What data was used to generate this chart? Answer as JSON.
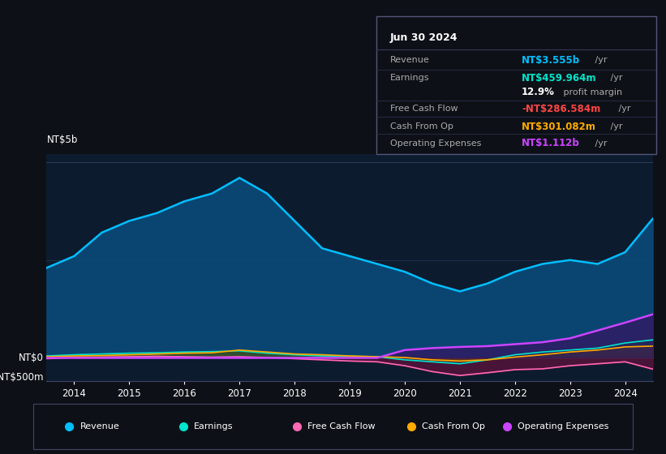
{
  "bg_color": "#0d1117",
  "chart_bg": "#0d1b2e",
  "title_box": {
    "date": "Jun 30 2024",
    "rows": [
      {
        "label": "Revenue",
        "value": "NT$3.555b",
        "suffix": " /yr",
        "value_color": "#00bfff"
      },
      {
        "label": "Earnings",
        "value": "NT$459.964m",
        "suffix": " /yr",
        "value_color": "#00e5cc"
      },
      {
        "label": "",
        "value": "12.9%",
        "suffix": " profit margin",
        "value_color": "#ffffff"
      },
      {
        "label": "Free Cash Flow",
        "value": "-NT$286.584m",
        "suffix": " /yr",
        "value_color": "#ff4444"
      },
      {
        "label": "Cash From Op",
        "value": "NT$301.082m",
        "suffix": " /yr",
        "value_color": "#ffaa00"
      },
      {
        "label": "Operating Expenses",
        "value": "NT$1.112b",
        "suffix": " /yr",
        "value_color": "#cc44ff"
      }
    ]
  },
  "ylabel_top": "NT$5b",
  "ylabel_zero": "NT$0",
  "ylabel_neg": "-NT$500m",
  "ylim": [
    -600,
    5200
  ],
  "years_x": [
    2013.5,
    2014,
    2014.5,
    2015,
    2015.5,
    2016,
    2016.5,
    2017,
    2017.5,
    2018,
    2018.5,
    2019,
    2019.5,
    2020,
    2020.5,
    2021,
    2021.5,
    2022,
    2022.5,
    2023,
    2023.5,
    2024,
    2024.5
  ],
  "revenue": [
    2300,
    2600,
    3200,
    3500,
    3700,
    4000,
    4200,
    4600,
    4200,
    3500,
    2800,
    2600,
    2400,
    2200,
    1900,
    1700,
    1900,
    2200,
    2400,
    2500,
    2400,
    2700,
    3555
  ],
  "earnings": [
    50,
    80,
    100,
    120,
    130,
    150,
    160,
    180,
    120,
    80,
    50,
    40,
    30,
    -50,
    -100,
    -150,
    -50,
    80,
    150,
    200,
    250,
    380,
    460
  ],
  "free_cash_flow": [
    -20,
    10,
    20,
    30,
    40,
    30,
    20,
    30,
    10,
    -20,
    -50,
    -80,
    -100,
    -200,
    -350,
    -450,
    -380,
    -300,
    -280,
    -200,
    -150,
    -100,
    -287
  ],
  "cash_from_op": [
    30,
    50,
    60,
    80,
    100,
    120,
    130,
    200,
    150,
    100,
    80,
    50,
    30,
    10,
    -50,
    -80,
    -50,
    20,
    80,
    150,
    200,
    280,
    301
  ],
  "op_expenses": [
    0,
    0,
    0,
    0,
    0,
    0,
    0,
    0,
    0,
    0,
    0,
    0,
    0,
    200,
    250,
    280,
    300,
    350,
    400,
    500,
    700,
    900,
    1112
  ],
  "revenue_color": "#00bfff",
  "earnings_color": "#00e5cc",
  "fcf_color": "#ff69b4",
  "cash_op_color": "#ffaa00",
  "op_exp_color": "#cc44ff",
  "revenue_fill": "#0a4a7a",
  "earnings_fill": "#005a50",
  "legend_items": [
    {
      "label": "Revenue",
      "color": "#00bfff"
    },
    {
      "label": "Earnings",
      "color": "#00e5cc"
    },
    {
      "label": "Free Cash Flow",
      "color": "#ff69b4"
    },
    {
      "label": "Cash From Op",
      "color": "#ffaa00"
    },
    {
      "label": "Operating Expenses",
      "color": "#cc44ff"
    }
  ],
  "xtick_years": [
    2014,
    2015,
    2016,
    2017,
    2018,
    2019,
    2020,
    2021,
    2022,
    2023,
    2024
  ]
}
